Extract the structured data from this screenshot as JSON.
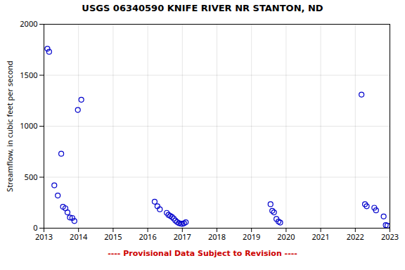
{
  "chart_data": {
    "type": "scatter",
    "title": "USGS 06340590 KNIFE RIVER NR STANTON, ND",
    "ylabel": "Streamflow, in cubic feet per second",
    "x": [
      2013.1,
      2013.15,
      2013.3,
      2013.4,
      2013.5,
      2013.55,
      2013.62,
      2013.68,
      2013.75,
      2013.82,
      2013.88,
      2013.98,
      2014.08,
      2016.2,
      2016.28,
      2016.35,
      2016.55,
      2016.6,
      2016.65,
      2016.7,
      2016.75,
      2016.8,
      2016.85,
      2016.9,
      2016.95,
      2017.0,
      2017.05,
      2017.1,
      2019.55,
      2019.6,
      2019.65,
      2019.72,
      2019.78,
      2019.83,
      2022.18,
      2022.28,
      2022.33,
      2022.55,
      2022.6,
      2022.82,
      2022.88,
      2022.93
    ],
    "values": [
      1760,
      1730,
      420,
      320,
      730,
      210,
      195,
      155,
      105,
      100,
      70,
      1160,
      1260,
      260,
      215,
      185,
      150,
      130,
      120,
      110,
      95,
      75,
      60,
      50,
      45,
      42,
      48,
      58,
      235,
      170,
      155,
      90,
      65,
      55,
      1310,
      235,
      215,
      200,
      175,
      115,
      30,
      25
    ],
    "color": "#0000cc",
    "marker": "circle",
    "xlim": [
      2013,
      2023
    ],
    "xticks": [
      2013,
      2014,
      2015,
      2016,
      2017,
      2018,
      2019,
      2020,
      2021,
      2022,
      2023
    ],
    "ylim": [
      0,
      2000
    ],
    "yticks": [
      0,
      500,
      1000,
      1500,
      2000
    ],
    "grid": true,
    "annotations": [
      {
        "text": "---- Provisional Data Subject to Revision ----",
        "color": "#cc0000"
      }
    ]
  }
}
